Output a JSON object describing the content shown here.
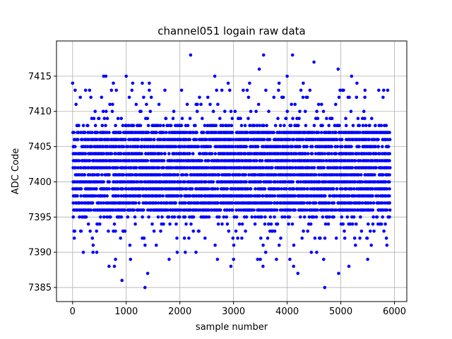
{
  "chart_data": {
    "type": "scatter",
    "title": "channel051 logain raw data",
    "xlabel": "sample number",
    "ylabel": "ADC Code",
    "xlim": [
      -300,
      6230
    ],
    "ylim": [
      7383,
      7420
    ],
    "xticks": [
      0,
      1000,
      2000,
      3000,
      4000,
      5000,
      6000
    ],
    "yticks": [
      7385,
      7390,
      7395,
      7400,
      7405,
      7410,
      7415
    ],
    "grid": true,
    "marker_color": "#0000ff",
    "sample_count": 5900,
    "band": {
      "ymin": 7396,
      "ymax": 7407
    },
    "outliers": [
      {
        "x": 0,
        "y": 7414
      },
      {
        "x": 40,
        "y": 7393
      },
      {
        "x": 150,
        "y": 7393
      },
      {
        "x": 200,
        "y": 7390
      },
      {
        "x": 380,
        "y": 7390
      },
      {
        "x": 450,
        "y": 7390
      },
      {
        "x": 580,
        "y": 7415
      },
      {
        "x": 620,
        "y": 7415
      },
      {
        "x": 680,
        "y": 7388
      },
      {
        "x": 760,
        "y": 7414
      },
      {
        "x": 780,
        "y": 7388
      },
      {
        "x": 800,
        "y": 7389
      },
      {
        "x": 920,
        "y": 7386
      },
      {
        "x": 1000,
        "y": 7415
      },
      {
        "x": 1080,
        "y": 7389
      },
      {
        "x": 1120,
        "y": 7414
      },
      {
        "x": 1300,
        "y": 7414
      },
      {
        "x": 1350,
        "y": 7385
      },
      {
        "x": 1400,
        "y": 7387
      },
      {
        "x": 1430,
        "y": 7414
      },
      {
        "x": 1800,
        "y": 7389
      },
      {
        "x": 1950,
        "y": 7390
      },
      {
        "x": 2100,
        "y": 7390
      },
      {
        "x": 2200,
        "y": 7418
      },
      {
        "x": 2300,
        "y": 7390
      },
      {
        "x": 2650,
        "y": 7415
      },
      {
        "x": 2700,
        "y": 7389
      },
      {
        "x": 2900,
        "y": 7414
      },
      {
        "x": 2950,
        "y": 7388
      },
      {
        "x": 3000,
        "y": 7389
      },
      {
        "x": 3300,
        "y": 7414
      },
      {
        "x": 3450,
        "y": 7389
      },
      {
        "x": 3480,
        "y": 7416
      },
      {
        "x": 3500,
        "y": 7389
      },
      {
        "x": 3550,
        "y": 7388
      },
      {
        "x": 3560,
        "y": 7418
      },
      {
        "x": 3600,
        "y": 7390
      },
      {
        "x": 3800,
        "y": 7389
      },
      {
        "x": 3850,
        "y": 7414
      },
      {
        "x": 4000,
        "y": 7415
      },
      {
        "x": 4050,
        "y": 7389
      },
      {
        "x": 4100,
        "y": 7418
      },
      {
        "x": 4120,
        "y": 7388
      },
      {
        "x": 4200,
        "y": 7387
      },
      {
        "x": 4300,
        "y": 7414
      },
      {
        "x": 4450,
        "y": 7390
      },
      {
        "x": 4500,
        "y": 7417
      },
      {
        "x": 4550,
        "y": 7390
      },
      {
        "x": 4700,
        "y": 7385
      },
      {
        "x": 4680,
        "y": 7389
      },
      {
        "x": 4950,
        "y": 7416
      },
      {
        "x": 4960,
        "y": 7387
      },
      {
        "x": 5050,
        "y": 7413
      },
      {
        "x": 5150,
        "y": 7388
      },
      {
        "x": 5200,
        "y": 7415
      },
      {
        "x": 5300,
        "y": 7414
      },
      {
        "x": 5450,
        "y": 7413
      },
      {
        "x": 5500,
        "y": 7389
      },
      {
        "x": 5800,
        "y": 7413
      },
      {
        "x": 5850,
        "y": 7392
      }
    ]
  }
}
